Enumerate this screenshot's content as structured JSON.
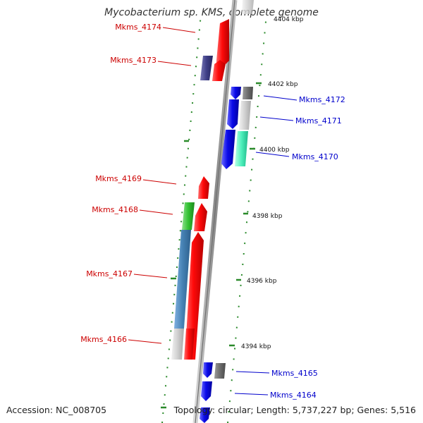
{
  "header": {
    "title": "Mycobacterium sp. KMS, complete genome"
  },
  "footer": {
    "accession": "Accession: NC_008705",
    "summary": "Topology: circular; Length: 5,737,227 bp; Genes: 5,516"
  },
  "ticks": [
    {
      "label": "4404 kbp"
    },
    {
      "label": "4402 kbp"
    },
    {
      "label": "4400 kbp"
    },
    {
      "label": "4398 kbp"
    },
    {
      "label": "4396 kbp"
    },
    {
      "label": "4394 kbp"
    }
  ],
  "genes_left": [
    {
      "label": "Mkms_4174",
      "color": "#cc0000"
    },
    {
      "label": "Mkms_4173",
      "color": "#cc0000"
    },
    {
      "label": "Mkms_4169",
      "color": "#cc0000"
    },
    {
      "label": "Mkms_4168",
      "color": "#cc0000"
    },
    {
      "label": "Mkms_4167",
      "color": "#cc0000"
    },
    {
      "label": "Mkms_4166",
      "color": "#cc0000"
    }
  ],
  "genes_right": [
    {
      "label": "Mkms_4172",
      "color": "#0000cc"
    },
    {
      "label": "Mkms_4171",
      "color": "#0000cc"
    },
    {
      "label": "Mkms_4170",
      "color": "#0000cc"
    },
    {
      "label": "Mkms_4165",
      "color": "#0000cc"
    },
    {
      "label": "Mkms_4164",
      "color": "#0000cc"
    }
  ],
  "colors": {
    "forward_strand": "#ff1010",
    "reverse_strand": "#1010ee",
    "backbone": "#888888",
    "gc_dots": "#2a8a2a"
  }
}
